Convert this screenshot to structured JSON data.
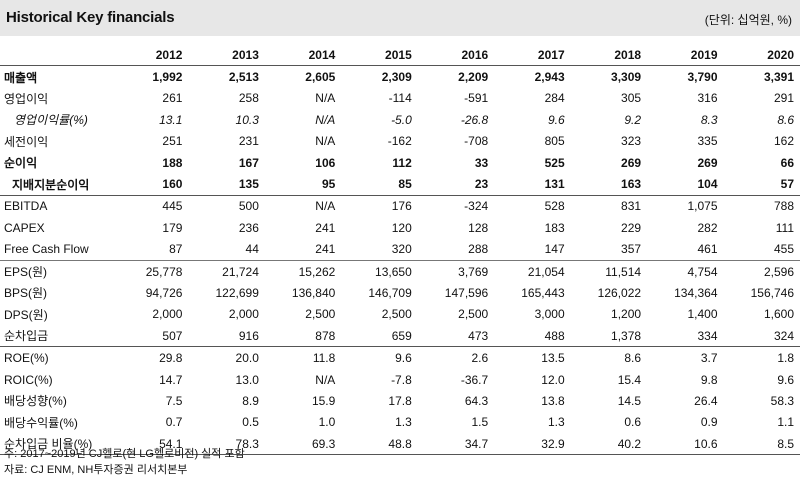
{
  "header": {
    "title": "Historical Key financials",
    "unit": "(단위: 십억원, %)"
  },
  "table": {
    "years": [
      "2012",
      "2013",
      "2014",
      "2015",
      "2016",
      "2017",
      "2018",
      "2019",
      "2020"
    ],
    "rows": [
      {
        "label": "매출액",
        "style": "bold",
        "values": [
          "1,992",
          "2,513",
          "2,605",
          "2,309",
          "2,209",
          "2,943",
          "3,309",
          "3,790",
          "3,391"
        ]
      },
      {
        "label": "영업이익",
        "style": "",
        "values": [
          "261",
          "258",
          "N/A",
          "-114",
          "-591",
          "284",
          "305",
          "316",
          "291"
        ]
      },
      {
        "label": "영업이익률(%)",
        "style": "italic",
        "values": [
          "13.1",
          "10.3",
          "N/A",
          "-5.0",
          "-26.8",
          "9.6",
          "9.2",
          "8.3",
          "8.6"
        ]
      },
      {
        "label": "세전이익",
        "style": "",
        "values": [
          "251",
          "231",
          "N/A",
          "-162",
          "-708",
          "805",
          "323",
          "335",
          "162"
        ]
      },
      {
        "label": "순이익",
        "style": "bold",
        "values": [
          "188",
          "167",
          "106",
          "112",
          "33",
          "525",
          "269",
          "269",
          "66"
        ]
      },
      {
        "label": "지배지분순이익",
        "style": "bold indent",
        "values": [
          "160",
          "135",
          "95",
          "85",
          "23",
          "131",
          "163",
          "104",
          "57"
        ]
      },
      {
        "label": "EBITDA",
        "style": "sep-dark",
        "values": [
          "445",
          "500",
          "N/A",
          "176",
          "-324",
          "528",
          "831",
          "1,075",
          "788"
        ]
      },
      {
        "label": "CAPEX",
        "style": "",
        "values": [
          "179",
          "236",
          "241",
          "120",
          "128",
          "183",
          "229",
          "282",
          "111"
        ]
      },
      {
        "label": "Free Cash Flow",
        "style": "",
        "values": [
          "87",
          "44",
          "241",
          "320",
          "288",
          "147",
          "357",
          "461",
          "455"
        ]
      },
      {
        "label": "EPS(원)",
        "style": "sep",
        "values": [
          "25,778",
          "21,724",
          "15,262",
          "13,650",
          "3,769",
          "21,054",
          "11,514",
          "4,754",
          "2,596"
        ]
      },
      {
        "label": "BPS(원)",
        "style": "",
        "values": [
          "94,726",
          "122,699",
          "136,840",
          "146,709",
          "147,596",
          "165,443",
          "126,022",
          "134,364",
          "156,746"
        ]
      },
      {
        "label": "DPS(원)",
        "style": "",
        "values": [
          "2,000",
          "2,000",
          "2,500",
          "2,500",
          "2,500",
          "3,000",
          "1,200",
          "1,400",
          "1,600"
        ]
      },
      {
        "label": "순차입금",
        "style": "",
        "values": [
          "507",
          "916",
          "878",
          "659",
          "473",
          "488",
          "1,378",
          "334",
          "324"
        ]
      },
      {
        "label": "ROE(%)",
        "style": "sep-dark",
        "values": [
          "29.8",
          "20.0",
          "11.8",
          "9.6",
          "2.6",
          "13.5",
          "8.6",
          "3.7",
          "1.8"
        ]
      },
      {
        "label": "ROIC(%)",
        "style": "",
        "values": [
          "14.7",
          "13.0",
          "N/A",
          "-7.8",
          "-36.7",
          "12.0",
          "15.4",
          "9.8",
          "9.6"
        ]
      },
      {
        "label": "배당성향(%)",
        "style": "",
        "values": [
          "7.5",
          "8.9",
          "15.9",
          "17.8",
          "64.3",
          "13.8",
          "14.5",
          "26.4",
          "58.3"
        ]
      },
      {
        "label": "배당수익률(%)",
        "style": "",
        "values": [
          "0.7",
          "0.5",
          "1.0",
          "1.3",
          "1.5",
          "1.3",
          "0.6",
          "0.9",
          "1.1"
        ]
      },
      {
        "label": "순차입금 비율(%)",
        "style": "bot",
        "values": [
          "54.1",
          "78.3",
          "69.3",
          "48.8",
          "34.7",
          "32.9",
          "40.2",
          "10.6",
          "8.5"
        ]
      }
    ]
  },
  "notes": [
    "주: 2017~2019년 CJ헬로(현 LG헬로비전) 실적 포함",
    "자료: CJ ENM, NH투자증권 리서치본부"
  ]
}
